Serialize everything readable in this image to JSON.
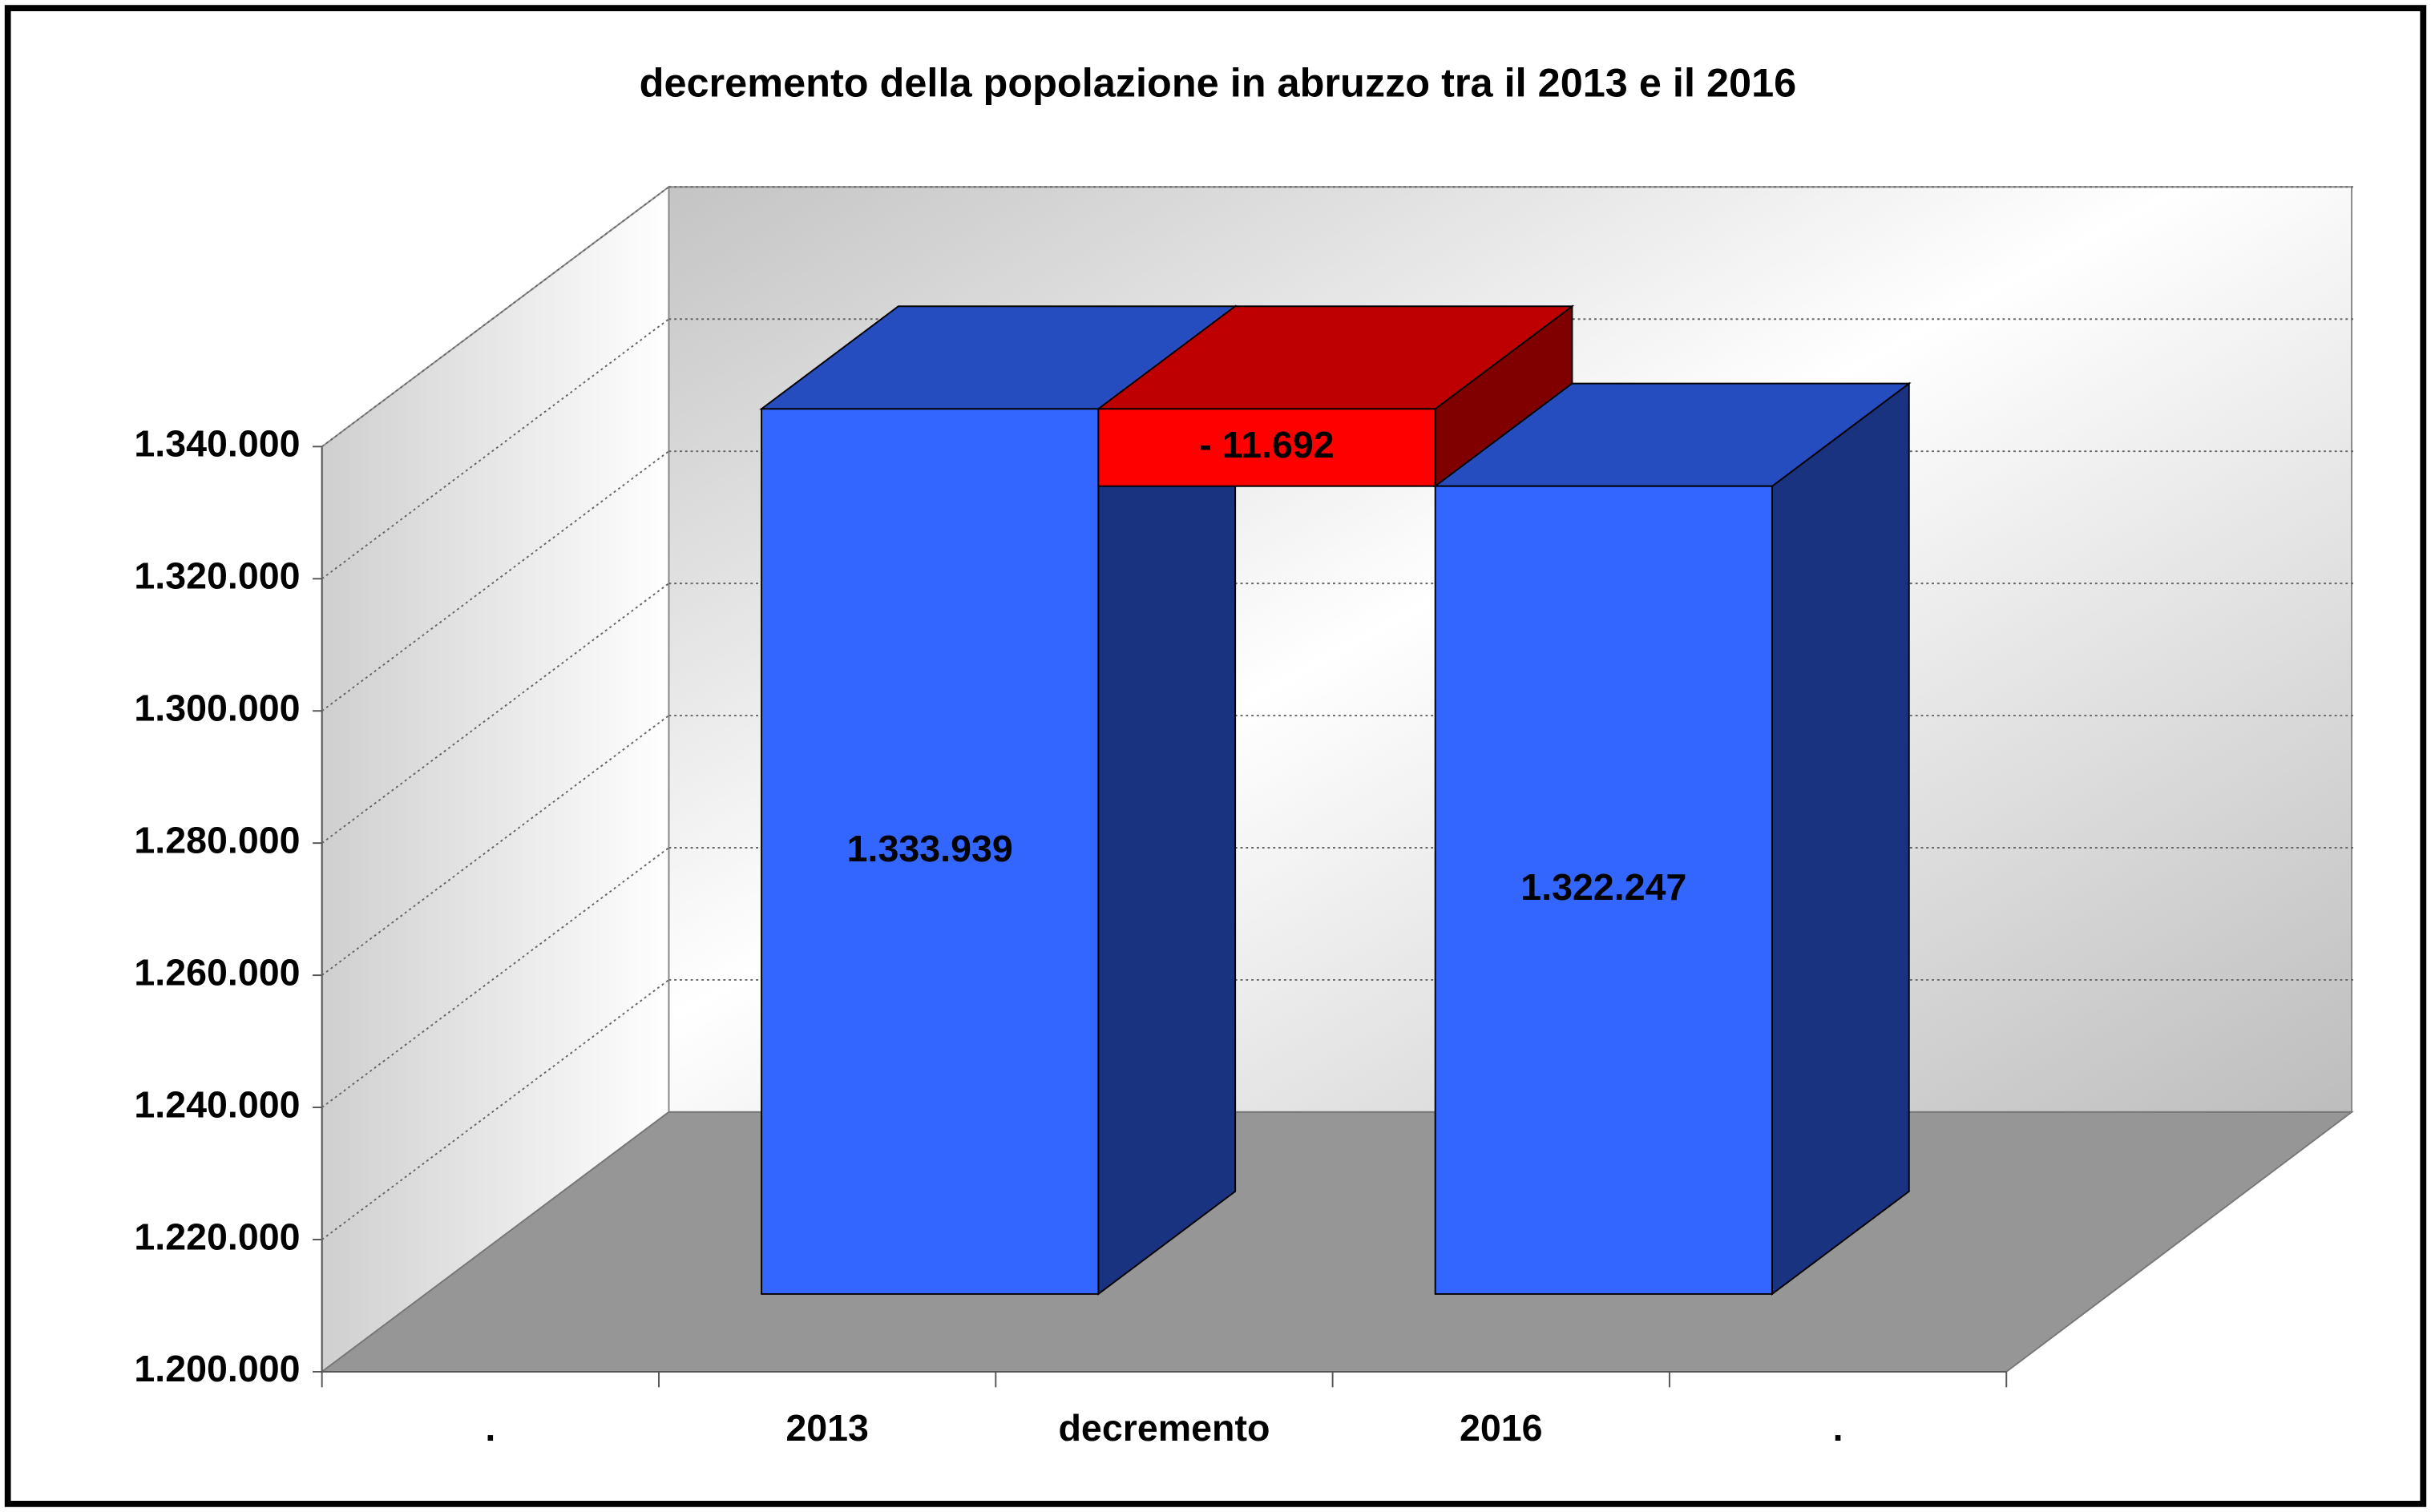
{
  "chart_data": {
    "type": "waterfall",
    "title": "decremento della popolazione in abruzzo tra il 2013 e il 2016",
    "categories": [
      ".",
      "2013",
      "decremento",
      "2016",
      "."
    ],
    "values": [
      null,
      1333939,
      -11692,
      1322247,
      null
    ],
    "value_labels": [
      null,
      "1.333.939",
      "- 11.692",
      "1.322.247",
      null
    ],
    "bar_kind": [
      null,
      "absolute",
      "relative",
      "absolute",
      null
    ],
    "colors": [
      null,
      "#3366ff",
      "#ff0000",
      "#3366ff",
      null
    ],
    "ylim": [
      1200000,
      1340000
    ],
    "yticks": [
      {
        "value": 1200000,
        "label": "1.200.000"
      },
      {
        "value": 1220000,
        "label": "1.220.000"
      },
      {
        "value": 1240000,
        "label": "1.240.000"
      },
      {
        "value": 1260000,
        "label": "1.260.000"
      },
      {
        "value": 1280000,
        "label": "1.280.000"
      },
      {
        "value": 1300000,
        "label": "1.300.000"
      },
      {
        "value": 1320000,
        "label": "1.320.000"
      },
      {
        "value": 1340000,
        "label": "1.340.000"
      }
    ],
    "grid": true
  }
}
